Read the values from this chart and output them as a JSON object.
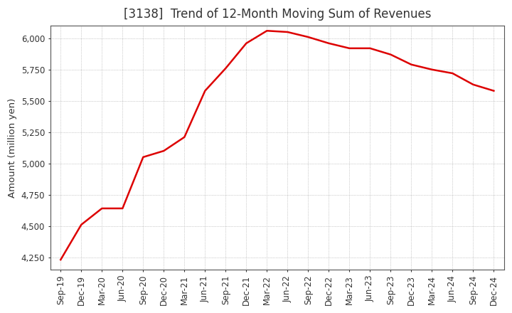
{
  "title": "[3138]  Trend of 12-Month Moving Sum of Revenues",
  "ylabel": "Amount (million yen)",
  "line_color": "#dd0000",
  "background_color": "#ffffff",
  "plot_bg_color": "#ffffff",
  "grid_color": "#999999",
  "xlabels": [
    "Sep-19",
    "Dec-19",
    "Mar-20",
    "Jun-20",
    "Sep-20",
    "Dec-20",
    "Mar-21",
    "Jun-21",
    "Sep-21",
    "Dec-21",
    "Mar-22",
    "Jun-22",
    "Sep-22",
    "Dec-22",
    "Mar-23",
    "Jun-23",
    "Sep-23",
    "Dec-23",
    "Mar-24",
    "Jun-24",
    "Sep-24",
    "Dec-24"
  ],
  "values": [
    4230,
    4510,
    4640,
    4640,
    5050,
    5100,
    5210,
    5580,
    5760,
    5960,
    6060,
    6050,
    6010,
    5960,
    5920,
    5920,
    5870,
    5790,
    5750,
    5720,
    5630,
    5580
  ],
  "ylim_min": 4150,
  "ylim_max": 6100,
  "yticks": [
    4250,
    4500,
    4750,
    5000,
    5250,
    5500,
    5750,
    6000
  ],
  "title_fontsize": 12,
  "tick_fontsize": 8.5,
  "ylabel_fontsize": 9.5,
  "title_color": "#333333"
}
